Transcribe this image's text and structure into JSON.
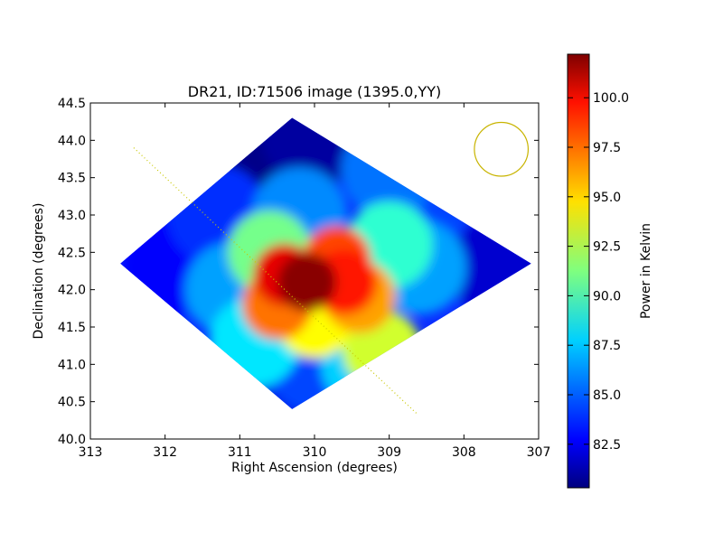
{
  "chart_data": {
    "type": "heatmap",
    "title": "DR21, ID:71506 image (1395.0,YY)",
    "xlabel": "Right Ascension (degrees)",
    "ylabel": "Declination (degrees)",
    "xlim": [
      313,
      307
    ],
    "ylim": [
      40.0,
      44.5
    ],
    "x_ticks": [
      "313",
      "312",
      "311",
      "310",
      "309",
      "308",
      "307"
    ],
    "y_ticks": [
      "40.0",
      "40.5",
      "41.0",
      "41.5",
      "42.0",
      "42.5",
      "43.0",
      "43.5",
      "44.0",
      "44.5"
    ],
    "colorbar": {
      "label": "Power in Kelvin",
      "range": [
        80.3,
        102.2
      ],
      "ticks": [
        "82.5",
        "85.0",
        "87.5",
        "90.0",
        "92.5",
        "95.0",
        "97.5",
        "100.0"
      ],
      "colormap": "jet"
    },
    "map_footprint_ra_dec": [
      [
        310.3,
        44.3
      ],
      [
        312.6,
        42.35
      ],
      [
        310.3,
        40.4
      ],
      [
        307.1,
        42.35
      ]
    ],
    "map_points": [
      {
        "ra": 310.1,
        "dec": 42.1,
        "power": 102.0
      },
      {
        "ra": 310.4,
        "dec": 42.2,
        "power": 100.0
      },
      {
        "ra": 309.6,
        "dec": 42.1,
        "power": 99.0
      },
      {
        "ra": 309.7,
        "dec": 42.4,
        "power": 98.0
      },
      {
        "ra": 310.5,
        "dec": 41.8,
        "power": 97.0
      },
      {
        "ra": 309.4,
        "dec": 41.9,
        "power": 96.0
      },
      {
        "ra": 310.0,
        "dec": 41.6,
        "power": 94.0
      },
      {
        "ra": 309.1,
        "dec": 41.2,
        "power": 93.0
      },
      {
        "ra": 310.6,
        "dec": 42.5,
        "power": 91.0
      },
      {
        "ra": 309.0,
        "dec": 42.6,
        "power": 89.5
      },
      {
        "ra": 310.8,
        "dec": 41.3,
        "power": 88.0
      },
      {
        "ra": 309.3,
        "dec": 41.0,
        "power": 87.5
      },
      {
        "ra": 308.6,
        "dec": 42.3,
        "power": 86.5
      },
      {
        "ra": 311.1,
        "dec": 42.0,
        "power": 86.5
      },
      {
        "ra": 310.2,
        "dec": 43.0,
        "power": 86.0
      },
      {
        "ra": 309.0,
        "dec": 43.6,
        "power": 85.5
      },
      {
        "ra": 310.0,
        "dec": 41.0,
        "power": 84.5
      },
      {
        "ra": 308.6,
        "dec": 43.1,
        "power": 84.5
      },
      {
        "ra": 311.3,
        "dec": 43.0,
        "power": 84.0
      },
      {
        "ra": 311.9,
        "dec": 42.3,
        "power": 83.0
      },
      {
        "ra": 307.5,
        "dec": 42.3,
        "power": 82.0
      },
      {
        "ra": 310.3,
        "dec": 40.55,
        "power": 82.5
      },
      {
        "ra": 310.7,
        "dec": 43.8,
        "power": 80.5
      },
      {
        "ra": 310.0,
        "dec": 44.1,
        "power": 81.0
      }
    ],
    "beam_circle": {
      "ra": 307.5,
      "dec": 43.88,
      "radius_deg": 0.36,
      "color": "#c8b400"
    },
    "scan_line": {
      "from": [
        312.42,
        43.9
      ],
      "to": [
        308.62,
        40.33
      ],
      "color": "#c8c800"
    },
    "grid": false
  }
}
